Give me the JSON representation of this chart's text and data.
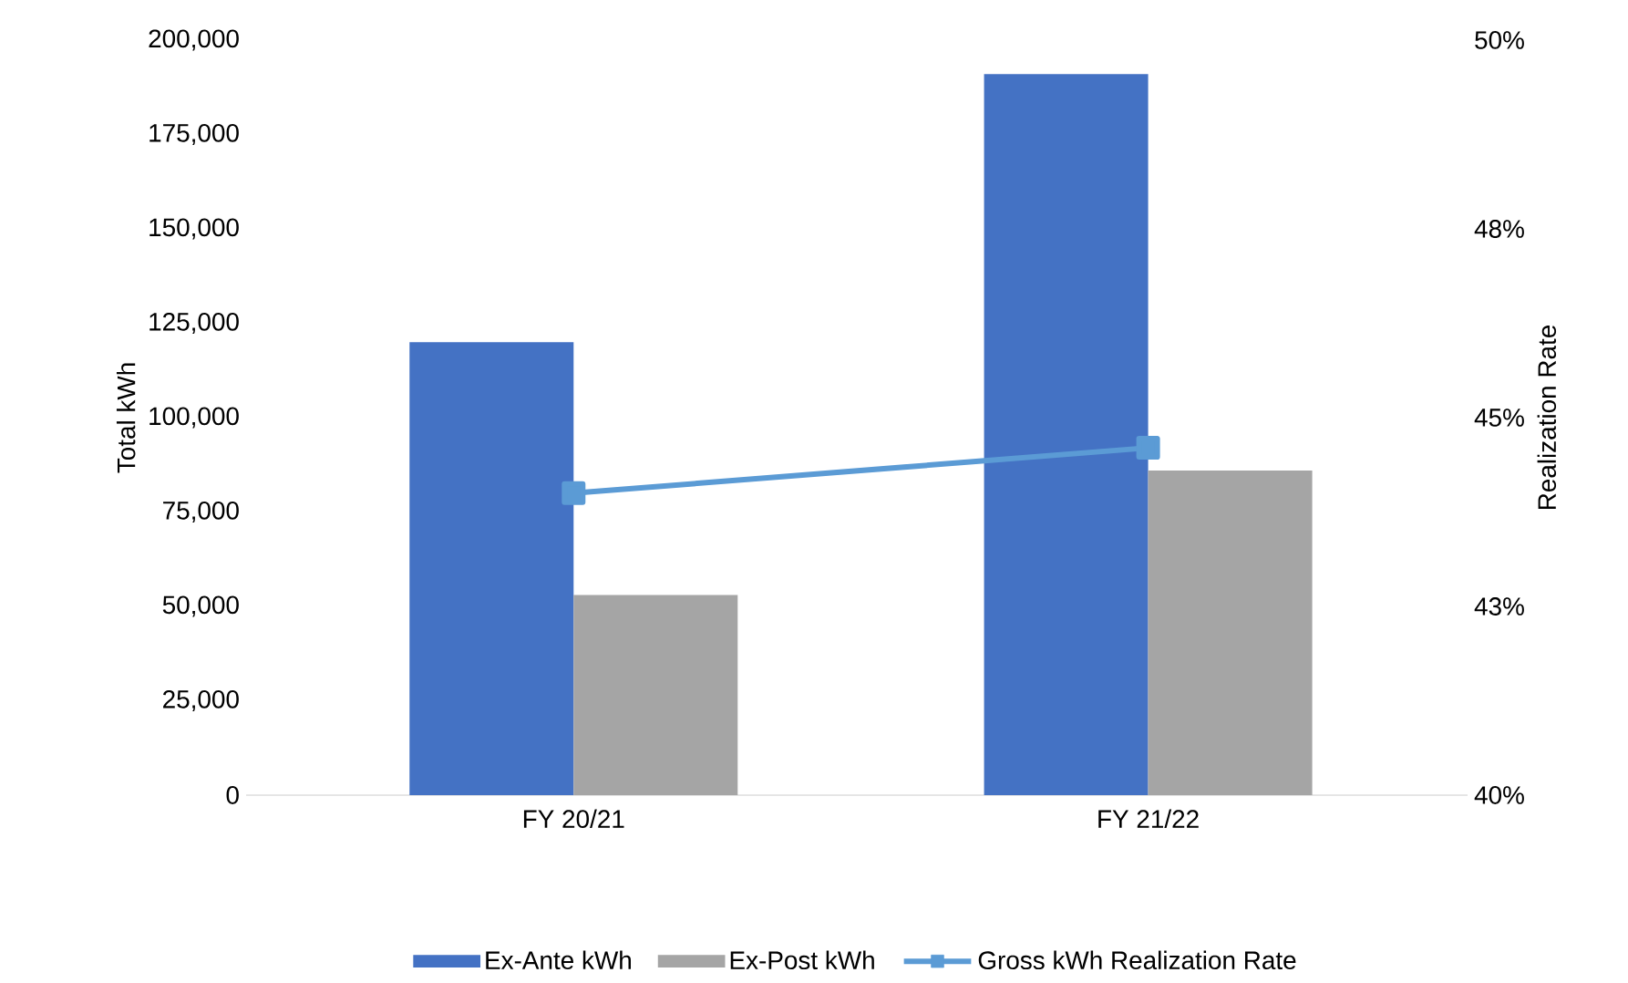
{
  "chart_data": {
    "type": "bar",
    "ylabel": "Total kWh",
    "y2label": "Realization Rate",
    "categories": [
      "FY 20/21",
      "FY 21/22"
    ],
    "series": [
      {
        "name": "Ex-Ante kWh",
        "color": "#4472c4",
        "values": [
          120000,
          191000
        ]
      },
      {
        "name": "Ex-Post kWh",
        "color": "#a5a5a5",
        "values": [
          53000,
          86000
        ]
      },
      {
        "name": "Gross kWh Realization Rate",
        "color": "#5b9bd5",
        "type": "line",
        "axis": "y2",
        "marker": "square",
        "values": [
          44.0,
          44.6
        ]
      }
    ],
    "ylim": [
      0,
      200000
    ],
    "yticks": [
      {
        "value": 0,
        "label": "0"
      },
      {
        "value": 25000,
        "label": "25,000"
      },
      {
        "value": 50000,
        "label": "50,000"
      },
      {
        "value": 75000,
        "label": "75,000"
      },
      {
        "value": 100000,
        "label": "100,000"
      },
      {
        "value": 125000,
        "label": "125,000"
      },
      {
        "value": 150000,
        "label": "150,000"
      },
      {
        "value": 175000,
        "label": "175,000"
      },
      {
        "value": 200000,
        "label": "200,000"
      }
    ],
    "y2lim": [
      40,
      50
    ],
    "y2ticks": [
      {
        "value": 40,
        "label": "40%"
      },
      {
        "value": 42.5,
        "label": "43%"
      },
      {
        "value": 45,
        "label": "45%"
      },
      {
        "value": 47.5,
        "label": "48%"
      },
      {
        "value": 50,
        "label": "50%"
      }
    ],
    "legend": "bottom"
  }
}
